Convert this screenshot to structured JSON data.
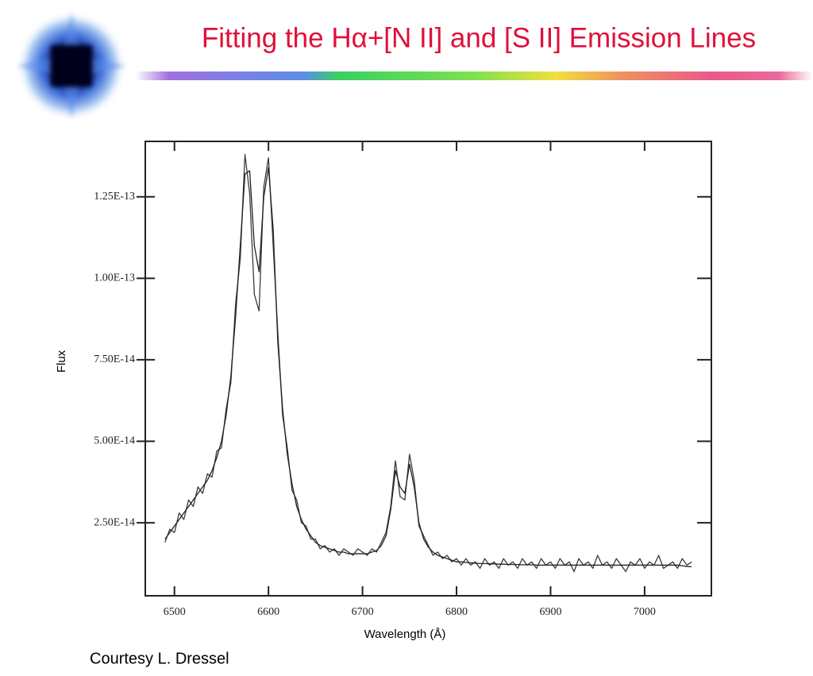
{
  "chart_data": {
    "type": "line",
    "title": "Fitting the Hα+[N II] and [S II] Emission Lines",
    "xlabel": "Wavelength (Å)",
    "ylabel": "Flux",
    "source": "Courtesy L. Dressel",
    "x": [
      6490,
      6495,
      6500,
      6505,
      6510,
      6515,
      6520,
      6525,
      6530,
      6535,
      6540,
      6545,
      6550,
      6555,
      6560,
      6565,
      6570,
      6575,
      6580,
      6585,
      6590,
      6595,
      6600,
      6605,
      6610,
      6615,
      6620,
      6625,
      6630,
      6635,
      6640,
      6645,
      6650,
      6655,
      6660,
      6665,
      6670,
      6675,
      6680,
      6685,
      6690,
      6695,
      6700,
      6705,
      6710,
      6715,
      6720,
      6725,
      6730,
      6735,
      6740,
      6745,
      6750,
      6755,
      6760,
      6765,
      6770,
      6775,
      6780,
      6785,
      6790,
      6795,
      6800,
      6805,
      6810,
      6815,
      6820,
      6825,
      6830,
      6835,
      6840,
      6845,
      6850,
      6855,
      6860,
      6865,
      6870,
      6875,
      6880,
      6885,
      6890,
      6895,
      6900,
      6905,
      6910,
      6915,
      6920,
      6925,
      6930,
      6935,
      6940,
      6945,
      6950,
      6955,
      6960,
      6965,
      6970,
      6975,
      6980,
      6985,
      6990,
      6995,
      7000,
      7005,
      7010,
      7015,
      7020,
      7025,
      7030,
      7035,
      7040,
      7045,
      7050
    ],
    "series": [
      {
        "color": "#3a3a3a",
        "values": [
          1.9e-14,
          2.3e-14,
          2.2e-14,
          2.8e-14,
          2.6e-14,
          3.2e-14,
          3e-14,
          3.6e-14,
          3.4e-14,
          4e-14,
          3.9e-14,
          4.7e-14,
          4.8e-14,
          6e-14,
          6.8e-14,
          9.2e-14,
          1.06e-13,
          1.38e-13,
          1.26e-13,
          9.5e-14,
          9e-14,
          1.28e-13,
          1.37e-13,
          1.1e-13,
          8.3e-14,
          5.8e-14,
          4.8e-14,
          3.5e-14,
          3.2e-14,
          2.5e-14,
          2.4e-14,
          2e-14,
          2e-14,
          1.7e-14,
          1.8e-14,
          1.6e-14,
          1.7e-14,
          1.5e-14,
          1.7e-14,
          1.6e-14,
          1.5e-14,
          1.7e-14,
          1.6e-14,
          1.5e-14,
          1.7e-14,
          1.6e-14,
          1.9e-14,
          2.2e-14,
          3e-14,
          4.4e-14,
          3.3e-14,
          3.2e-14,
          4.6e-14,
          3.8e-14,
          2.4e-14,
          2.1e-14,
          1.8e-14,
          1.5e-14,
          1.6e-14,
          1.4e-14,
          1.5e-14,
          1.3e-14,
          1.4e-14,
          1.2e-14,
          1.4e-14,
          1.2e-14,
          1.3e-14,
          1.1e-14,
          1.4e-14,
          1.2e-14,
          1.3e-14,
          1.1e-14,
          1.4e-14,
          1.2e-14,
          1.3e-14,
          1.1e-14,
          1.4e-14,
          1.2e-14,
          1.3e-14,
          1.1e-14,
          1.4e-14,
          1.2e-14,
          1.3e-14,
          1.1e-14,
          1.4e-14,
          1.2e-14,
          1.3e-14,
          1e-14,
          1.4e-14,
          1.2e-14,
          1.3e-14,
          1.1e-14,
          1.5e-14,
          1.2e-14,
          1.3e-14,
          1.1e-14,
          1.4e-14,
          1.2e-14,
          1e-14,
          1.3e-14,
          1.2e-14,
          1.4e-14,
          1.1e-14,
          1.3e-14,
          1.2e-14,
          1.5e-14,
          1.1e-14,
          1.2e-14,
          1.3e-14,
          1.1e-14,
          1.4e-14,
          1.2e-14,
          1.3e-14
        ]
      },
      {
        "color": "#222222",
        "values": [
          2e-14,
          2.2e-14,
          2.4e-14,
          2.6e-14,
          2.8e-14,
          3e-14,
          3.2e-14,
          3.4e-14,
          3.6e-14,
          3.8e-14,
          4.1e-14,
          4.5e-14,
          5e-14,
          5.8e-14,
          7e-14,
          8.8e-14,
          1.1e-13,
          1.32e-13,
          1.33e-13,
          1.1e-13,
          1.02e-13,
          1.25e-13,
          1.34e-13,
          1.15e-13,
          8e-14,
          6e-14,
          4.6e-14,
          3.7e-14,
          3e-14,
          2.6e-14,
          2.3e-14,
          2.1e-14,
          1.9e-14,
          1.8e-14,
          1.75e-14,
          1.7e-14,
          1.65e-14,
          1.6e-14,
          1.6e-14,
          1.55e-14,
          1.55e-14,
          1.55e-14,
          1.55e-14,
          1.55e-14,
          1.6e-14,
          1.65e-14,
          1.8e-14,
          2.1e-14,
          2.9e-14,
          4.1e-14,
          3.6e-14,
          3.4e-14,
          4.3e-14,
          3.6e-14,
          2.5e-14,
          2e-14,
          1.75e-14,
          1.6e-14,
          1.5e-14,
          1.45e-14,
          1.4e-14,
          1.35e-14,
          1.3e-14,
          1.3e-14,
          1.28e-14,
          1.27e-14,
          1.26e-14,
          1.25e-14,
          1.25e-14,
          1.24e-14,
          1.24e-14,
          1.23e-14,
          1.23e-14,
          1.22e-14,
          1.22e-14,
          1.22e-14,
          1.21e-14,
          1.21e-14,
          1.21e-14,
          1.2e-14,
          1.2e-14,
          1.2e-14,
          1.2e-14,
          1.2e-14,
          1.2e-14,
          1.2e-14,
          1.2e-14,
          1.2e-14,
          1.2e-14,
          1.2e-14,
          1.2e-14,
          1.2e-14,
          1.2e-14,
          1.2e-14,
          1.2e-14,
          1.2e-14,
          1.2e-14,
          1.2e-14,
          1.2e-14,
          1.2e-14,
          1.2e-14,
          1.2e-14,
          1.2e-14,
          1.2e-14,
          1.2e-14,
          1.2e-14,
          1.2e-14,
          1.2e-14,
          1.2e-14,
          1.2e-14,
          1.18e-14,
          1.16e-14,
          1.15e-14
        ]
      }
    ],
    "xlim": [
      6469,
      7071
    ],
    "ylim": [
      2.6e-15,
      1.42e-13
    ],
    "xticks": [
      6500,
      6600,
      6700,
      6800,
      6900,
      7000
    ],
    "yticks": [
      {
        "value": 2.5e-14,
        "label": "2.50E-14"
      },
      {
        "value": 5e-14,
        "label": "5.00E-14"
      },
      {
        "value": 7.5e-14,
        "label": "7.50E-14"
      },
      {
        "value": 1e-13,
        "label": "1.00E-13"
      },
      {
        "value": 1.25e-13,
        "label": "1.25E-13"
      }
    ],
    "grid": false
  }
}
